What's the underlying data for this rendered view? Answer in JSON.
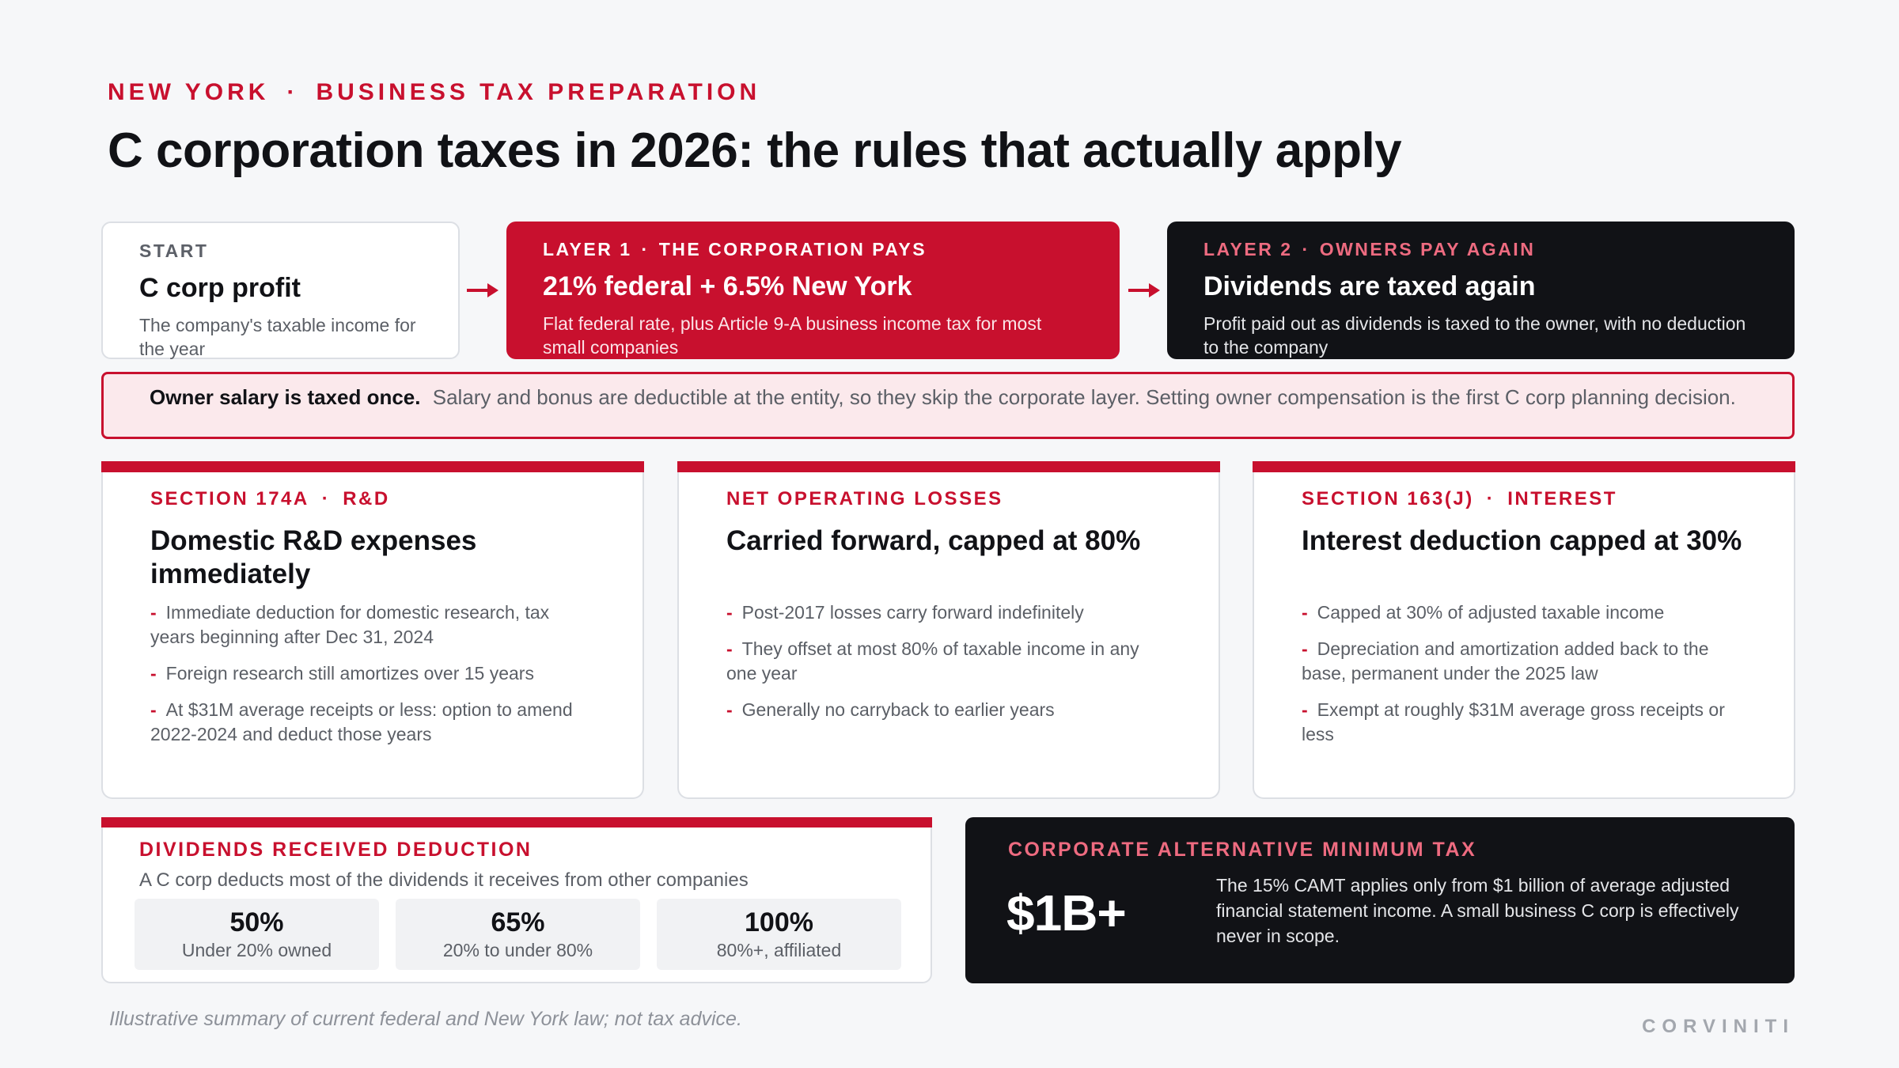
{
  "header": {
    "eyebrow_location": "NEW YORK",
    "eyebrow_separator": "·",
    "eyebrow_topic": "BUSINESS TAX PREPARATION",
    "title": "C corporation taxes in 2026: the rules that actually apply"
  },
  "flow": {
    "start": {
      "label": "START",
      "head": "C corp profit",
      "desc": "The company's taxable income for the year"
    },
    "layer1": {
      "label_a": "LAYER 1",
      "label_b": "THE CORPORATION PAYS",
      "head": "21% federal + 6.5% New York",
      "desc": "Flat federal rate, plus Article 9-A business income tax for most small companies"
    },
    "layer2": {
      "label_a": "LAYER 2",
      "label_b": "OWNERS PAY AGAIN",
      "head": "Dividends are taxed again",
      "desc": "Profit paid out as dividends is taxed to the owner, with no deduction to the company"
    },
    "separator": "·"
  },
  "note": {
    "bold": "Owner salary is taxed once.",
    "text": "Salary and bonus are deductible at the entity, so they skip the corporate layer. Setting owner compensation is the first C corp planning decision."
  },
  "rules": [
    {
      "label_a": "SECTION 174A",
      "label_b": "R&D",
      "head": "Domestic R&D expenses immediately",
      "items": [
        "Immediate deduction for domestic research, tax years beginning after Dec 31, 2024",
        "Foreign research still amortizes over 15 years",
        "At $31M average receipts or less: option to amend 2022-2024 and deduct those years"
      ]
    },
    {
      "label_a": "NET OPERATING LOSSES",
      "label_b": "",
      "head": "Carried forward, capped at 80%",
      "items": [
        "Post-2017 losses carry forward indefinitely",
        "They offset at most 80% of taxable income in any one year",
        "Generally no carryback to earlier years"
      ]
    },
    {
      "label_a": "SECTION 163(J)",
      "label_b": "INTEREST",
      "head": "Interest deduction capped at 30%",
      "items": [
        "Capped at 30% of adjusted taxable income",
        "Depreciation and amortization added back to the base, permanent under the 2025 law",
        "Exempt at roughly $31M average gross receipts or less"
      ]
    }
  ],
  "drd": {
    "label": "DIVIDENDS RECEIVED DEDUCTION",
    "sub": "A C corp deducts most of the dividends it receives from other companies",
    "tiers": [
      {
        "pct": "50%",
        "cap": "Under 20% owned"
      },
      {
        "pct": "65%",
        "cap": "20% to under 80%"
      },
      {
        "pct": "100%",
        "cap": "80%+, affiliated"
      }
    ]
  },
  "camt": {
    "label": "CORPORATE ALTERNATIVE MINIMUM TAX",
    "big": "$1B+",
    "text": "The 15% CAMT applies only from $1 billion of average adjusted financial statement income. A small business C corp is effectively never in scope."
  },
  "footer": {
    "disclaimer": "Illustrative summary of current federal and New York law; not tax advice.",
    "brand": "CORVINITI"
  },
  "colors": {
    "accent": "#c8102e",
    "dark": "#111216",
    "note_bg": "#fbe9ec",
    "page_bg": "#f6f7f9"
  }
}
